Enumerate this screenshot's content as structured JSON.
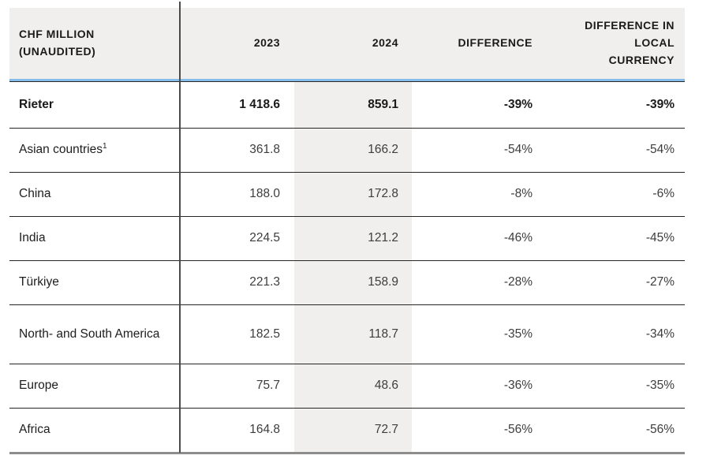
{
  "table": {
    "header": {
      "col_label": [
        "CHF MILLION",
        "(UNAUDITED)"
      ],
      "col_2023": "2023",
      "col_2024": "2024",
      "col_diff": "DIFFERENCE",
      "col_diff_local": [
        "DIFFERENCE IN",
        "LOCAL",
        "CURRENCY"
      ]
    },
    "rows": [
      {
        "label": "Rieter",
        "y2023": "1 418.6",
        "y2024": "859.1",
        "diff": "-39%",
        "diff_local": "-39%"
      },
      {
        "label": "Asian countries",
        "sup": "1",
        "y2023": "361.8",
        "y2024": "166.2",
        "diff": "-54%",
        "diff_local": "-54%"
      },
      {
        "label": "China",
        "y2023": "188.0",
        "y2024": "172.8",
        "diff": "-8%",
        "diff_local": "-6%"
      },
      {
        "label": "India",
        "y2023": "224.5",
        "y2024": "121.2",
        "diff": "-46%",
        "diff_local": "-45%"
      },
      {
        "label": "Türkiye",
        "y2023": "221.3",
        "y2024": "158.9",
        "diff": "-28%",
        "diff_local": "-27%"
      },
      {
        "label": "North- and South America",
        "y2023": "182.5",
        "y2024": "118.7",
        "diff": "-35%",
        "diff_local": "-34%"
      },
      {
        "label": "Europe",
        "y2023": "75.7",
        "y2024": "48.6",
        "diff": "-36%",
        "diff_local": "-35%"
      },
      {
        "label": "Africa",
        "y2023": "164.8",
        "y2024": "72.7",
        "diff": "-56%",
        "diff_local": "-56%"
      }
    ]
  },
  "colors": {
    "header_bg": "#f0efee",
    "highlight_column_bg": "#f0efee",
    "accent_underline": "#85bce9",
    "vertical_divider": "#4a4a4a",
    "row_separator": "#262626",
    "bottom_border": "#8d8d8d",
    "label_text": "#1d1d1d",
    "number_text": "#3d3d3d"
  }
}
